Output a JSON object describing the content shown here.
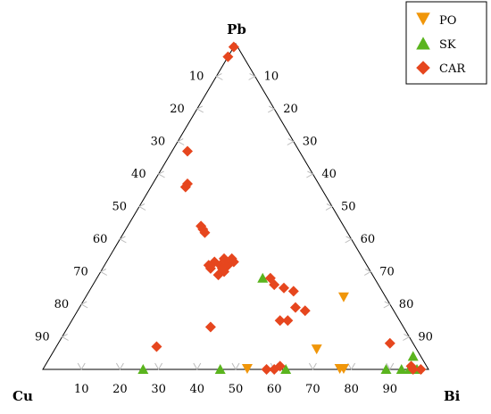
{
  "chart_data": {
    "type": "scatter",
    "subtype": "ternary",
    "vertices": {
      "top": "Pb",
      "left": "Cu",
      "right": "Bi"
    },
    "ticks": [
      10,
      20,
      30,
      40,
      50,
      60,
      70,
      80,
      90
    ],
    "legend": {
      "position": "top-right"
    },
    "series": [
      {
        "name": "PO",
        "marker": "triangle-down",
        "color": "#F0960A",
        "points": [
          {
            "Bi": 53,
            "Pb": 0
          },
          {
            "Bi": 77,
            "Pb": 0
          },
          {
            "Bi": 78,
            "Pb": 0
          },
          {
            "Bi": 68,
            "Pb": 6
          },
          {
            "Bi": 67,
            "Pb": 22
          }
        ]
      },
      {
        "name": "SK",
        "marker": "triangle-up",
        "color": "#5AB41E",
        "points": [
          {
            "Bi": 26,
            "Pb": 0
          },
          {
            "Bi": 46,
            "Pb": 0
          },
          {
            "Bi": 63,
            "Pb": 0
          },
          {
            "Bi": 89,
            "Pb": 0
          },
          {
            "Bi": 93,
            "Pb": 0
          },
          {
            "Bi": 95,
            "Pb": 0
          },
          {
            "Bi": 97,
            "Pb": 0
          },
          {
            "Bi": 94,
            "Pb": 4
          },
          {
            "Bi": 43,
            "Pb": 28
          }
        ]
      },
      {
        "name": "CAR",
        "marker": "diamond",
        "color": "#E6461E",
        "points": [
          {
            "Bi": 0,
            "Pb": 99
          },
          {
            "Bi": 0,
            "Pb": 96
          },
          {
            "Bi": 4,
            "Pb": 67
          },
          {
            "Bi": 9,
            "Pb": 56
          },
          {
            "Bi": 9,
            "Pb": 57
          },
          {
            "Bi": 19,
            "Pb": 44
          },
          {
            "Bi": 20,
            "Pb": 43
          },
          {
            "Bi": 21,
            "Pb": 42
          },
          {
            "Bi": 28,
            "Pb": 33
          },
          {
            "Bi": 30,
            "Pb": 34
          },
          {
            "Bi": 30,
            "Pb": 32
          },
          {
            "Bi": 31,
            "Pb": 31
          },
          {
            "Bi": 32,
            "Pb": 32
          },
          {
            "Bi": 32,
            "Pb": 30
          },
          {
            "Bi": 33,
            "Pb": 33
          },
          {
            "Bi": 32,
            "Pb": 34
          },
          {
            "Bi": 28,
            "Pb": 31
          },
          {
            "Bi": 27,
            "Pb": 32
          },
          {
            "Bi": 31,
            "Pb": 29
          },
          {
            "Bi": 45,
            "Pb": 28
          },
          {
            "Bi": 47,
            "Pb": 26
          },
          {
            "Bi": 50,
            "Pb": 25
          },
          {
            "Bi": 53,
            "Pb": 24
          },
          {
            "Bi": 56,
            "Pb": 19
          },
          {
            "Bi": 59,
            "Pb": 18
          },
          {
            "Bi": 54,
            "Pb": 15
          },
          {
            "Bi": 56,
            "Pb": 15
          },
          {
            "Bi": 37,
            "Pb": 13
          },
          {
            "Bi": 26,
            "Pb": 7
          },
          {
            "Bi": 58,
            "Pb": 0
          },
          {
            "Bi": 60,
            "Pb": 0
          },
          {
            "Bi": 61,
            "Pb": 1
          },
          {
            "Bi": 86,
            "Pb": 8
          },
          {
            "Bi": 95,
            "Pb": 1
          },
          {
            "Bi": 96,
            "Pb": 0
          },
          {
            "Bi": 98,
            "Pb": 0
          }
        ]
      }
    ]
  }
}
